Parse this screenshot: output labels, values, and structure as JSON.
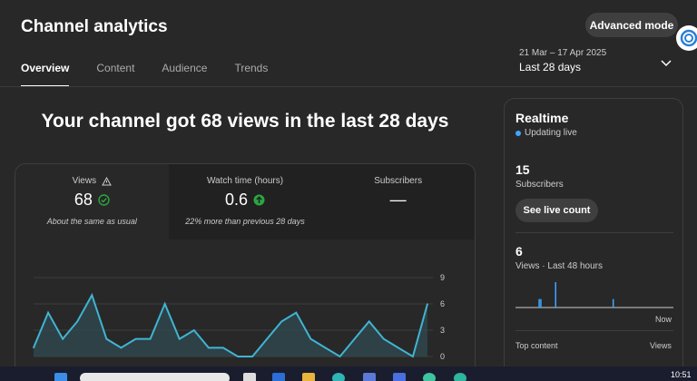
{
  "header": {
    "title": "Channel analytics",
    "advanced_mode": "Advanced mode",
    "date_range": "21 Mar – 17 Apr 2025",
    "date_label": "Last 28 days"
  },
  "tabs": [
    {
      "label": "Overview",
      "active": true
    },
    {
      "label": "Content",
      "active": false
    },
    {
      "label": "Audience",
      "active": false
    },
    {
      "label": "Trends",
      "active": false
    }
  ],
  "headline": "Your channel got 68 views in the last 28 days",
  "metrics": [
    {
      "label": "Views",
      "value": "68",
      "note": "About the same as usual",
      "status": "check",
      "selected": true
    },
    {
      "label": "Watch time (hours)",
      "value": "0.6",
      "note": "22% more than previous 28 days",
      "status": "up",
      "selected": false
    },
    {
      "label": "Subscribers",
      "value": "—",
      "note": "",
      "status": "none",
      "selected": false
    }
  ],
  "chart_data": {
    "type": "area",
    "series": [
      {
        "values": [
          1,
          5,
          2,
          4,
          7,
          2,
          1,
          2,
          2,
          6,
          2,
          3,
          1,
          1,
          0,
          0,
          2,
          4,
          5,
          2,
          1,
          0,
          2,
          4,
          2,
          1,
          0,
          6
        ]
      }
    ],
    "y_ticks": [
      "9",
      "6",
      "3",
      "0"
    ],
    "ylim": [
      0,
      9
    ],
    "color": "#41b4d2"
  },
  "realtime": {
    "title": "Realtime",
    "status": "Updating live",
    "subscribers_value": "15",
    "subscribers_label": "Subscribers",
    "live_button": "See live count",
    "views_value": "6",
    "views_label": "Views · Last 48 hours",
    "now_label": "Now",
    "top_content": "Top content",
    "views_col": "Views",
    "bars": [
      0,
      0,
      0,
      0,
      0,
      0,
      0,
      0,
      0,
      0,
      0,
      0,
      0,
      0,
      1,
      1,
      0,
      0,
      0,
      0,
      0,
      0,
      0,
      0,
      3,
      0,
      0,
      0,
      0,
      0,
      0,
      0,
      0,
      0,
      0,
      0,
      0,
      0,
      0,
      0,
      0,
      0,
      0,
      0,
      0,
      0,
      0,
      0,
      0,
      0,
      0,
      0,
      0,
      0,
      0,
      0,
      0,
      0,
      0,
      1,
      0,
      0,
      0,
      0,
      0,
      0,
      0,
      0,
      0,
      0,
      0,
      0,
      0,
      0,
      0,
      0,
      0,
      0,
      0,
      0,
      0,
      0,
      0,
      0,
      0,
      0,
      0,
      0,
      0,
      0,
      0,
      0,
      0,
      0,
      0,
      0
    ]
  },
  "taskbar": {
    "clock": "10:51"
  }
}
